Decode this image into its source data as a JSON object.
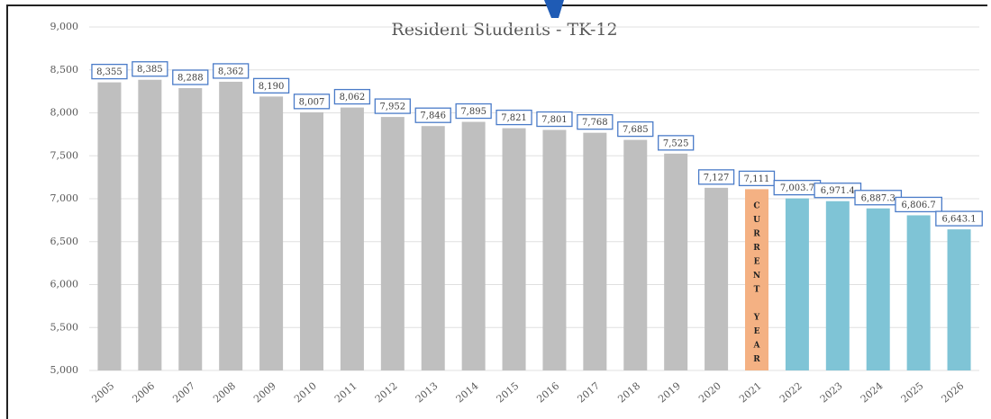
{
  "chart_data": {
    "type": "bar",
    "title": "Resident Students - TK-12",
    "categories": [
      "2005",
      "2006",
      "2007",
      "2008",
      "2009",
      "2010",
      "2011",
      "2012",
      "2013",
      "2014",
      "2015",
      "2016",
      "2017",
      "2018",
      "2019",
      "2020",
      "2021",
      "2022",
      "2023",
      "2024",
      "2025",
      "2026"
    ],
    "values": [
      8355,
      8385,
      8288,
      8362,
      8190,
      8007,
      8062,
      7952,
      7846,
      7895,
      7821,
      7801,
      7768,
      7685,
      7525,
      7127,
      7111,
      7003.7,
      6971.4,
      6887.3,
      6806.7,
      6643.1
    ],
    "value_labels": [
      "8,355",
      "8,385",
      "8,288",
      "8,362",
      "8,190",
      "8,007",
      "8,062",
      "7,952",
      "7,846",
      "7,895",
      "7,821",
      "7,801",
      "7,768",
      "7,685",
      "7,525",
      "7,127",
      "7,111",
      "7,003.7",
      "6,971.4",
      "6,887.3",
      "6,806.7",
      "6,643.1"
    ],
    "colors": [
      "#bfbfbf",
      "#bfbfbf",
      "#bfbfbf",
      "#bfbfbf",
      "#bfbfbf",
      "#bfbfbf",
      "#bfbfbf",
      "#bfbfbf",
      "#bfbfbf",
      "#bfbfbf",
      "#bfbfbf",
      "#bfbfbf",
      "#bfbfbf",
      "#bfbfbf",
      "#bfbfbf",
      "#bfbfbf",
      "#f4b183",
      "#7fc4d6",
      "#7fc4d6",
      "#7fc4d6",
      "#7fc4d6",
      "#7fc4d6"
    ],
    "annotation": "CURRENT YEAR",
    "ylim": [
      5000,
      9000
    ],
    "yticks": [
      {
        "value": 5000,
        "label": "5,000"
      },
      {
        "value": 5500,
        "label": "5,500"
      },
      {
        "value": 6000,
        "label": "6,000"
      },
      {
        "value": 6500,
        "label": "6,500"
      },
      {
        "value": 7000,
        "label": "7,000"
      },
      {
        "value": 7500,
        "label": "7,500"
      },
      {
        "value": 8000,
        "label": "8,000"
      },
      {
        "value": 8500,
        "label": "8,500"
      },
      {
        "value": 9000,
        "label": "9,000"
      }
    ],
    "grid": true
  }
}
